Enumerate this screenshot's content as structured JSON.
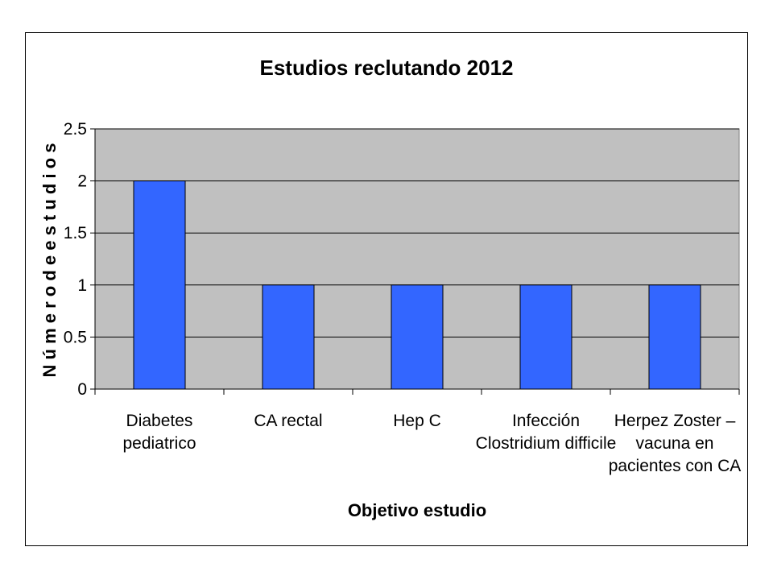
{
  "chart_data": {
    "type": "bar",
    "title": "Estudios reclutando 2012",
    "xlabel": "Objetivo estudio",
    "ylabel": "N ú m e r o   d e   e s t u d i o s",
    "categories": [
      [
        "Diabetes",
        "pediatrico"
      ],
      [
        "CA rectal"
      ],
      [
        "Hep C"
      ],
      [
        "Infección",
        "Clostridium difficile"
      ],
      [
        "Herpez Zoster –",
        "vacuna en",
        "pacientes con CA"
      ]
    ],
    "values": [
      2,
      1,
      1,
      1,
      1
    ],
    "ylim": [
      0,
      2.5
    ],
    "yticks": [
      "0",
      "0.5",
      "1",
      "1.5",
      "2",
      "2.5"
    ],
    "grid": true,
    "legend": "none",
    "colors": {
      "bar": "#3366ff",
      "plot_background": "#c0c0c0",
      "grid": "#000000"
    }
  }
}
